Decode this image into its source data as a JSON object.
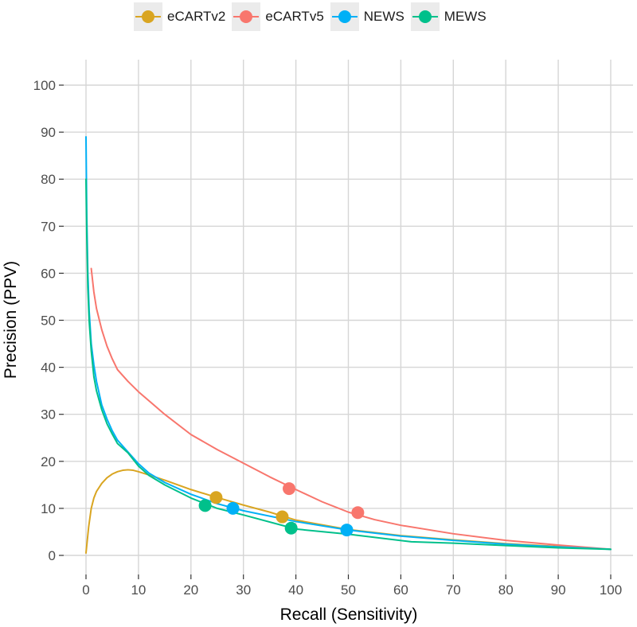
{
  "chart_data": {
    "type": "line",
    "xlabel": "Recall (Sensitivity)",
    "ylabel": "Precision (PPV)",
    "xlim": [
      0,
      100
    ],
    "ylim": [
      0,
      100
    ],
    "xticks": [
      0,
      10,
      20,
      30,
      40,
      50,
      60,
      70,
      80,
      90,
      100
    ],
    "yticks": [
      0,
      10,
      20,
      30,
      40,
      50,
      60,
      70,
      80,
      90,
      100
    ],
    "grid": true,
    "legend_position": "top",
    "series": [
      {
        "name": "eCARTv2",
        "color": "#D9A521",
        "x": [
          0,
          0.5,
          1,
          1.5,
          2,
          3,
          4,
          5,
          6,
          7,
          8,
          9,
          10,
          12,
          15,
          20,
          25,
          30,
          35,
          40,
          50,
          60,
          70,
          80,
          90,
          100
        ],
        "y": [
          0.5,
          6,
          10,
          12.2,
          13.6,
          15.3,
          16.5,
          17.3,
          17.8,
          18.1,
          18.2,
          18.1,
          17.8,
          17.1,
          16,
          14,
          12.3,
          10.7,
          9.2,
          7.5,
          5.5,
          4.2,
          3.3,
          2.5,
          1.9,
          1.3
        ],
        "markers": [
          {
            "x": 24.8,
            "y": 12.3
          },
          {
            "x": 37.4,
            "y": 8.2
          }
        ]
      },
      {
        "name": "eCARTv5",
        "color": "#F8766D",
        "x": [
          1,
          1.5,
          2,
          3,
          4,
          5,
          6,
          8,
          10,
          15,
          20,
          25,
          30,
          35,
          40,
          45,
          50,
          55,
          60,
          70,
          80,
          90,
          100
        ],
        "y": [
          61,
          56,
          52.5,
          48,
          44.5,
          41.8,
          39.5,
          37,
          34.8,
          30,
          25.7,
          22.5,
          19.6,
          16.7,
          14,
          11.4,
          9.2,
          7.6,
          6.4,
          4.6,
          3.2,
          2.2,
          1.3
        ],
        "markers": [
          {
            "x": 38.7,
            "y": 14.2
          },
          {
            "x": 51.8,
            "y": 9.1
          }
        ]
      },
      {
        "name": "NEWS",
        "color": "#00B0F6",
        "x": [
          0,
          0.15,
          0.35,
          0.6,
          1,
          1.5,
          2,
          3,
          4,
          5,
          6,
          8,
          10,
          12,
          15,
          20,
          25,
          30,
          40,
          50,
          60,
          70,
          80,
          90,
          100
        ],
        "y": [
          89,
          72,
          60,
          52,
          45,
          40.5,
          37,
          32,
          29,
          26.5,
          24.5,
          22,
          19.5,
          17.5,
          15.5,
          13,
          11,
          9.5,
          7.2,
          5.4,
          4.1,
          3.2,
          2.4,
          1.8,
          1.3
        ],
        "markers": [
          {
            "x": 28,
            "y": 10
          },
          {
            "x": 49.7,
            "y": 5.4
          }
        ]
      },
      {
        "name": "MEWS",
        "color": "#00C08B",
        "x": [
          0,
          0.15,
          0.35,
          0.6,
          1,
          1.5,
          2,
          3,
          4,
          5,
          6,
          8,
          10,
          12,
          15,
          20,
          25,
          30,
          40,
          50,
          62,
          70,
          80,
          90,
          100
        ],
        "y": [
          80,
          68,
          57,
          50,
          43.5,
          38,
          35,
          31,
          28,
          25.8,
          23.8,
          21.8,
          19,
          17,
          15,
          12.2,
          10,
          8.6,
          5.6,
          4.5,
          2.9,
          2.6,
          2.1,
          1.6,
          1.3
        ],
        "markers": [
          {
            "x": 22.7,
            "y": 10.6
          },
          {
            "x": 39.1,
            "y": 5.8
          }
        ]
      }
    ]
  }
}
